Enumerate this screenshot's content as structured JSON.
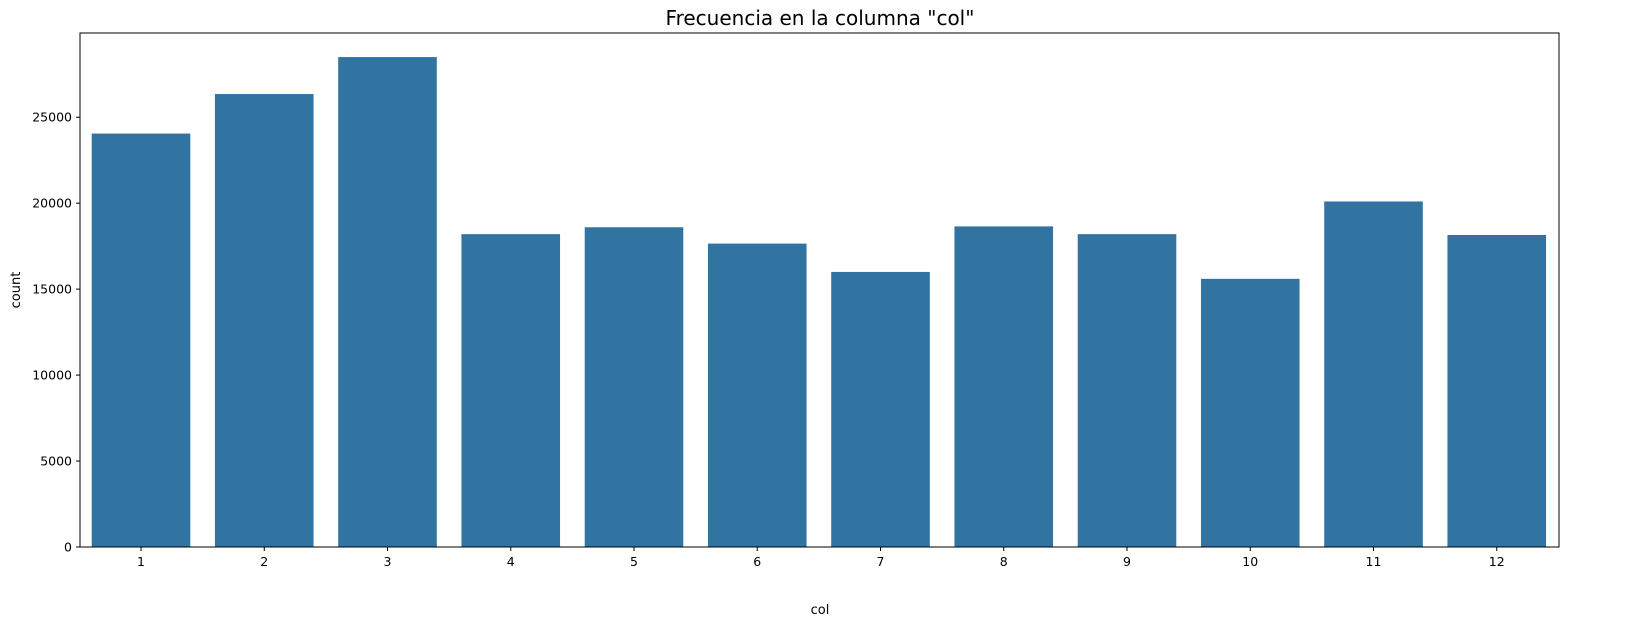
{
  "chart_data": {
    "type": "bar",
    "title": "Frecuencia en la columna \"col\"",
    "xlabel": "col",
    "ylabel": "count",
    "categories": [
      "1",
      "2",
      "3",
      "4",
      "5",
      "6",
      "7",
      "8",
      "9",
      "10",
      "11",
      "12"
    ],
    "values": [
      24050,
      26350,
      28500,
      18200,
      18600,
      17650,
      16000,
      18650,
      18200,
      15600,
      20100,
      18150
    ],
    "ylim": [
      0,
      29900
    ],
    "yticks": [
      0,
      5000,
      10000,
      15000,
      20000,
      25000
    ],
    "grid": false,
    "bar_color": "#3274a1"
  }
}
